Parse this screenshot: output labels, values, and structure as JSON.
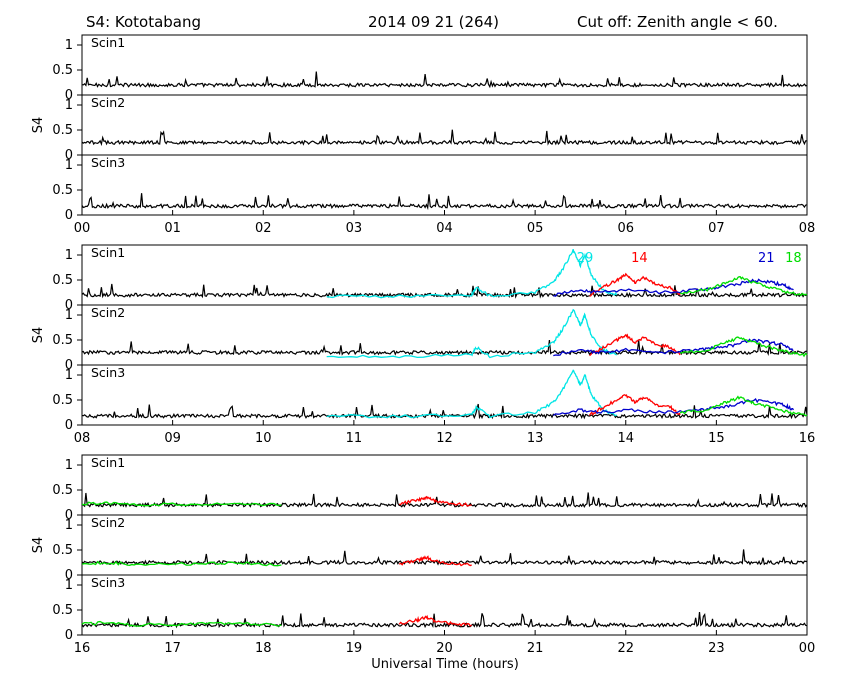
{
  "header": {
    "station": "S4: Kototabang",
    "date": "2014 09 21 (264)",
    "cutoff": "Cut off: Zenith angle < 60."
  },
  "colors": {
    "default": "#000000",
    "sat29": "#00e5e5",
    "sat14": "#ff0000",
    "sat21": "#0000cc",
    "sat18": "#00dd00"
  },
  "chart_data": {
    "type": "line",
    "ylabel": "S4",
    "xlabel": "Universal Time (hours)",
    "ylim": [
      0,
      1.2
    ],
    "yticks": [
      0,
      0.5,
      1
    ],
    "ytick_labels": [
      "0",
      "0.5",
      "1"
    ],
    "groups": [
      {
        "xlim": [
          0,
          8
        ],
        "xtick_labels": [
          "00",
          "01",
          "02",
          "03",
          "04",
          "05",
          "06",
          "07",
          "08"
        ],
        "panels": [
          {
            "name": "Scin1",
            "baseline": 0.2
          },
          {
            "name": "Scin2",
            "baseline": 0.25
          },
          {
            "name": "Scin3",
            "baseline": 0.18
          }
        ],
        "satellites": []
      },
      {
        "xlim": [
          8,
          16
        ],
        "xtick_labels": [
          "08",
          "09",
          "10",
          "11",
          "12",
          "13",
          "14",
          "15",
          "16"
        ],
        "panels": [
          {
            "name": "Scin1",
            "baseline": 0.2
          },
          {
            "name": "Scin2",
            "baseline": 0.25
          },
          {
            "name": "Scin3",
            "baseline": 0.18
          }
        ],
        "satellites": [
          {
            "name": "29",
            "color": "#00e5e5",
            "points": [
              [
                10.7,
                0.18
              ],
              [
                11.5,
                0.17
              ],
              [
                12.3,
                0.2
              ],
              [
                12.35,
                0.35
              ],
              [
                12.5,
                0.18
              ],
              [
                13.0,
                0.25
              ],
              [
                13.2,
                0.45
              ],
              [
                13.3,
                0.7
              ],
              [
                13.42,
                1.1
              ],
              [
                13.5,
                0.8
              ],
              [
                13.55,
                1.0
              ],
              [
                13.62,
                0.6
              ],
              [
                13.75,
                0.3
              ],
              [
                13.9,
                0.2
              ]
            ]
          },
          {
            "name": "14",
            "color": "#ff0000",
            "points": [
              [
                13.6,
                0.2
              ],
              [
                13.75,
                0.35
              ],
              [
                13.9,
                0.5
              ],
              [
                14.0,
                0.6
              ],
              [
                14.1,
                0.45
              ],
              [
                14.2,
                0.55
              ],
              [
                14.35,
                0.4
              ],
              [
                14.5,
                0.35
              ],
              [
                14.6,
                0.2
              ]
            ]
          },
          {
            "name": "21",
            "color": "#0000cc",
            "points": [
              [
                13.2,
                0.2
              ],
              [
                13.5,
                0.3
              ],
              [
                13.7,
                0.25
              ],
              [
                14.0,
                0.3
              ],
              [
                14.4,
                0.25
              ],
              [
                14.8,
                0.3
              ],
              [
                15.0,
                0.35
              ],
              [
                15.2,
                0.4
              ],
              [
                15.4,
                0.5
              ],
              [
                15.6,
                0.45
              ],
              [
                15.75,
                0.4
              ],
              [
                15.85,
                0.3
              ]
            ]
          },
          {
            "name": "18",
            "color": "#00dd00",
            "points": [
              [
                14.6,
                0.25
              ],
              [
                14.9,
                0.3
              ],
              [
                15.1,
                0.45
              ],
              [
                15.25,
                0.55
              ],
              [
                15.4,
                0.45
              ],
              [
                15.6,
                0.35
              ],
              [
                15.8,
                0.25
              ],
              [
                16.0,
                0.2
              ]
            ]
          }
        ]
      },
      {
        "xlim": [
          16,
          24
        ],
        "xtick_labels": [
          "16",
          "17",
          "18",
          "19",
          "20",
          "21",
          "22",
          "23",
          "00"
        ],
        "panels": [
          {
            "name": "Scin1",
            "baseline": 0.2
          },
          {
            "name": "Scin2",
            "baseline": 0.25
          },
          {
            "name": "Scin3",
            "baseline": 0.2
          }
        ],
        "satellites": [
          {
            "name": "",
            "color": "#00dd00",
            "points": [
              [
                16.0,
                0.22
              ],
              [
                16.3,
                0.25
              ],
              [
                16.6,
                0.2
              ],
              [
                17.2,
                0.22
              ],
              [
                17.7,
                0.24
              ],
              [
                18.2,
                0.2
              ]
            ]
          },
          {
            "name": "",
            "color": "#ff0000",
            "points": [
              [
                19.5,
                0.22
              ],
              [
                19.7,
                0.3
              ],
              [
                19.8,
                0.35
              ],
              [
                19.9,
                0.28
              ],
              [
                20.1,
                0.22
              ],
              [
                20.3,
                0.2
              ]
            ]
          }
        ]
      }
    ]
  }
}
